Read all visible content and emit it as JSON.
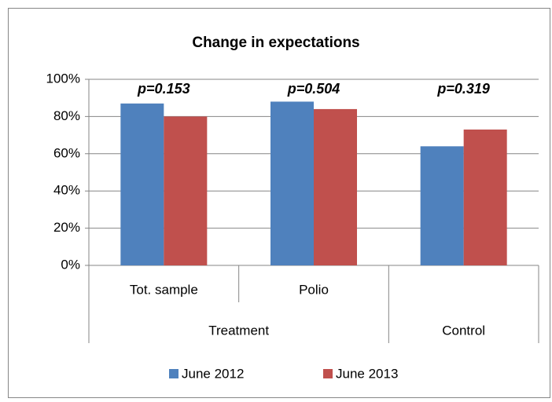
{
  "chart_data": {
    "type": "bar",
    "title": "Change in expectations",
    "categories": [
      "Tot. sample",
      "Polio",
      null
    ],
    "category_groups": [
      "Treatment",
      "Treatment",
      "Control"
    ],
    "series": [
      {
        "name": "June 2012",
        "color": "#4f81bd",
        "values": [
          87,
          88,
          64
        ]
      },
      {
        "name": "June 2013",
        "color": "#c0504d",
        "values": [
          80,
          84,
          73
        ]
      }
    ],
    "annotations": [
      "p=0.153",
      "p=0.504",
      "p=0.319"
    ],
    "ylim": [
      0,
      100
    ],
    "yticks": [
      {
        "value": 0,
        "label": "0%"
      },
      {
        "value": 20,
        "label": "20%"
      },
      {
        "value": 40,
        "label": "40%"
      },
      {
        "value": 60,
        "label": "60%"
      },
      {
        "value": 80,
        "label": "80%"
      },
      {
        "value": 100,
        "label": "100%"
      }
    ],
    "grid": true,
    "legend": "bottom"
  }
}
